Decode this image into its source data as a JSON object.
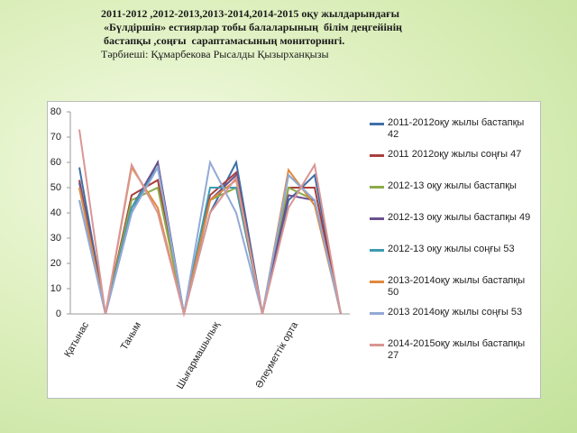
{
  "header": {
    "lines": [
      "2011-2012 ,2012-2013,2013-2014,2014-2015 оқу жылдарындағы",
      " «Бүлдіршін» естиярлар тобы балаларының  білім деңгейінің",
      " бастапқы ,соңғы  сараптамасының мониторингі.",
      "Тәрбиеші: Құмарбекова Рысалды Қызырханқызы"
    ]
  },
  "chart_data": {
    "type": "line",
    "categories": [
      "Қатынас",
      null,
      "Таным",
      null,
      null,
      "Шығармашылық",
      null,
      null,
      "Әлеуметтік орта",
      null,
      null
    ],
    "ylim": [
      0,
      80
    ],
    "yticks": [
      0,
      10,
      20,
      30,
      40,
      50,
      60,
      70,
      80
    ],
    "series": [
      {
        "name": "2011-2012оқу жылы бастапқы 42",
        "color": "#3f6fa8",
        "values": [
          58,
          0,
          40,
          60,
          0,
          40,
          60,
          0,
          45,
          55,
          0
        ]
      },
      {
        "name": "2011 2012оқу жылы соңғы 47",
        "color": "#a83f3c",
        "values": [
          53,
          0,
          47,
          53,
          0,
          47,
          56,
          0,
          50,
          50,
          0
        ]
      },
      {
        "name": "2012-13 оқу жылы бастапқы",
        "color": "#8cab4a",
        "values": [
          50,
          0,
          45,
          50,
          0,
          45,
          50,
          0,
          50,
          45,
          0
        ]
      },
      {
        "name": "2012-13 оқу жылы бастапқы 49",
        "color": "#6c518f",
        "values": [
          52,
          0,
          42,
          60,
          0,
          45,
          55,
          0,
          47,
          45,
          0
        ]
      },
      {
        "name": "2012-13 оқу жылы соңғы 53",
        "color": "#3e9bb1",
        "values": [
          45,
          0,
          42,
          58,
          0,
          50,
          50,
          0,
          55,
          45,
          0
        ]
      },
      {
        "name": "2013-2014оқу жылы бастапқы 50",
        "color": "#e08a3c",
        "values": [
          50,
          0,
          58,
          42,
          0,
          45,
          53,
          0,
          57,
          43,
          0
        ]
      },
      {
        "name": "2013 2014оқу жылы соңғы 53",
        "color": "#93a9d6",
        "values": [
          45,
          0,
          40,
          58,
          0,
          60,
          40,
          0,
          55,
          45,
          0
        ]
      },
      {
        "name": "2014-2015оқу жылы бастапқы 27",
        "color": "#d99694",
        "values": [
          73,
          0,
          59,
          40,
          0,
          40,
          54,
          0,
          42,
          59,
          0
        ]
      }
    ]
  }
}
